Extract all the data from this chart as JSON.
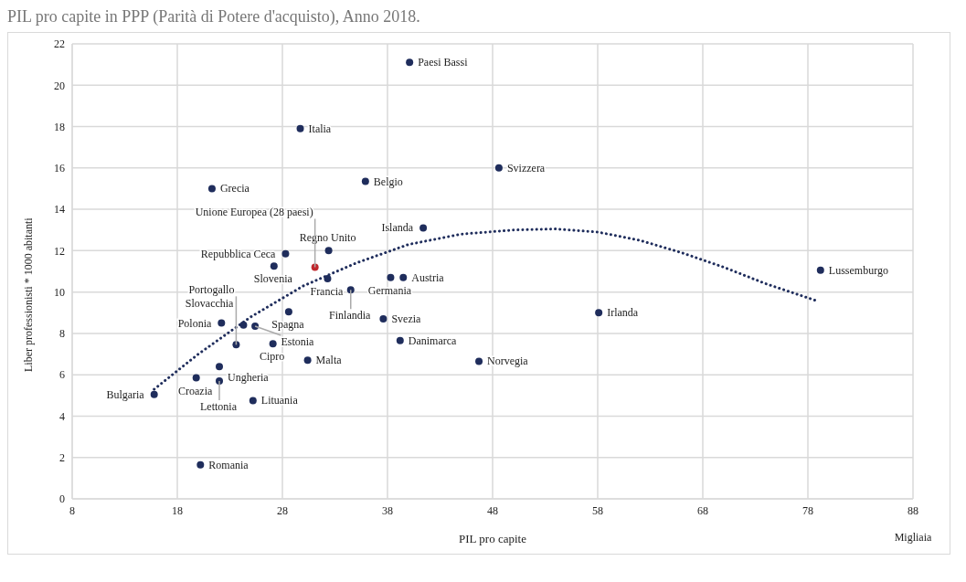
{
  "chart_data": {
    "type": "scatter",
    "title": "PIL pro capite in PPP (Parità di Potere d'acquisto), Anno 2018.",
    "xlabel": "PIL pro capite",
    "ylabel": "Liber professionisti * 1000 abitanti",
    "xlim": [
      8,
      88
    ],
    "xticks": [
      8,
      18,
      28,
      38,
      48,
      58,
      68,
      78,
      88
    ],
    "ylim": [
      0,
      22
    ],
    "yticks": [
      0,
      2,
      4,
      6,
      8,
      10,
      12,
      14,
      16,
      18,
      20,
      22
    ],
    "grid": true,
    "marker": "circle",
    "series": [
      {
        "type": "scatter",
        "x": [
          40.1,
          29.7,
          48.6,
          35.9,
          21.3,
          41.4,
          32.4,
          28.3,
          27.2,
          31.1,
          79.2,
          32.3,
          38.3,
          39.5,
          34.5,
          28.6,
          58.1,
          37.6,
          22.2,
          24.3,
          25.4,
          39.2,
          27.1,
          23.6,
          30.4,
          46.7,
          22.0,
          19.8,
          22.0,
          15.8,
          25.2,
          20.2
        ],
        "values": [
          21.1,
          17.9,
          16.0,
          15.35,
          15.0,
          13.1,
          12.0,
          11.85,
          11.25,
          11.2,
          11.05,
          10.65,
          10.7,
          10.7,
          10.1,
          9.05,
          9.0,
          8.7,
          8.5,
          8.4,
          8.35,
          7.65,
          7.5,
          7.45,
          6.7,
          6.65,
          6.4,
          5.85,
          5.7,
          5.05,
          4.75,
          1.65
        ],
        "colors": [
          "#1f2d5c",
          "#1f2d5c",
          "#1f2d5c",
          "#1f2d5c",
          "#1f2d5c",
          "#1f2d5c",
          "#1f2d5c",
          "#1f2d5c",
          "#1f2d5c",
          "#c0282d",
          "#1f2d5c",
          "#1f2d5c",
          "#1f2d5c",
          "#1f2d5c",
          "#1f2d5c",
          "#1f2d5c",
          "#1f2d5c",
          "#1f2d5c",
          "#1f2d5c",
          "#1f2d5c",
          "#1f2d5c",
          "#1f2d5c",
          "#1f2d5c",
          "#1f2d5c",
          "#1f2d5c",
          "#1f2d5c",
          "#1f2d5c",
          "#1f2d5c",
          "#1f2d5c",
          "#1f2d5c",
          "#1f2d5c",
          "#1f2d5c"
        ]
      },
      {
        "type": "line",
        "color": "#1f2d5c",
        "line_style": "dotted",
        "marker": "none",
        "x": [
          15.8,
          20,
          25,
          30,
          35,
          40,
          45,
          50,
          54,
          58,
          62,
          66,
          70,
          74,
          78.7
        ],
        "values": [
          5.3,
          7.0,
          8.8,
          10.3,
          11.4,
          12.3,
          12.8,
          13.0,
          13.05,
          12.9,
          12.5,
          11.9,
          11.2,
          10.4,
          9.6
        ]
      }
    ],
    "annotations": [
      {
        "text": "Paesi Bassi",
        "x": 40.1,
        "y": 21.1
      },
      {
        "text": "Italia",
        "x": 29.7,
        "y": 17.9
      },
      {
        "text": "Svizzera",
        "x": 48.6,
        "y": 16.0
      },
      {
        "text": "Belgio",
        "x": 35.9,
        "y": 15.35
      },
      {
        "text": "Grecia",
        "x": 21.3,
        "y": 15.0
      },
      {
        "text": "Islanda",
        "x": 41.4,
        "y": 13.1
      },
      {
        "text": "Regno Unito",
        "x": 32.4,
        "y": 12.0
      },
      {
        "text": "Repubblica Ceca",
        "x": 28.3,
        "y": 11.85
      },
      {
        "text": "Slovenia",
        "x": 27.2,
        "y": 11.25
      },
      {
        "text": "Unione Europea (28 paesi)",
        "x": 31.1,
        "y": 11.2
      },
      {
        "text": "Lussemburgo",
        "x": 79.2,
        "y": 11.05
      },
      {
        "text": "Francia",
        "x": 32.3,
        "y": 10.65
      },
      {
        "text": "Germania",
        "x": 38.3,
        "y": 10.7
      },
      {
        "text": "Austria",
        "x": 39.5,
        "y": 10.7
      },
      {
        "text": "Finlandia",
        "x": 34.5,
        "y": 10.1
      },
      {
        "text": "Spagna",
        "x": 28.6,
        "y": 9.05
      },
      {
        "text": "Irlanda",
        "x": 58.1,
        "y": 9.0
      },
      {
        "text": "Svezia",
        "x": 37.6,
        "y": 8.7
      },
      {
        "text": "Polonia",
        "x": 22.2,
        "y": 8.5
      },
      {
        "text": "Slovacchia",
        "x": 24.3,
        "y": 8.4
      },
      {
        "text": "Estonia",
        "x": 25.4,
        "y": 8.35
      },
      {
        "text": "Danimarca",
        "x": 39.2,
        "y": 7.65
      },
      {
        "text": "Cipro",
        "x": 27.1,
        "y": 7.5
      },
      {
        "text": "Portogallo",
        "x": 23.6,
        "y": 7.45
      },
      {
        "text": "Malta",
        "x": 30.4,
        "y": 6.7
      },
      {
        "text": "Norvegia",
        "x": 46.7,
        "y": 6.65
      },
      {
        "text": "Ungheria",
        "x": 22.0,
        "y": 6.4
      },
      {
        "text": "Croazia",
        "x": 19.8,
        "y": 5.85
      },
      {
        "text": "Lettonia",
        "x": 22.0,
        "y": 5.7
      },
      {
        "text": "Bulgaria",
        "x": 15.8,
        "y": 5.05
      },
      {
        "text": "Lituania",
        "x": 25.2,
        "y": 4.75
      },
      {
        "text": "Romania",
        "x": 20.2,
        "y": 1.65
      },
      "Migliaia"
    ]
  }
}
